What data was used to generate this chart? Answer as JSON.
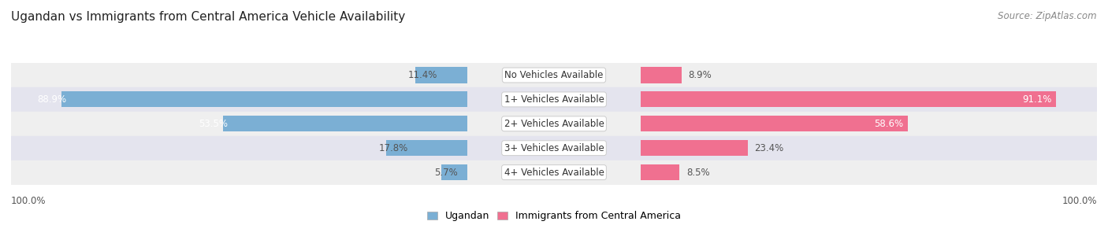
{
  "title": "Ugandan vs Immigrants from Central America Vehicle Availability",
  "source": "Source: ZipAtlas.com",
  "categories": [
    "No Vehicles Available",
    "1+ Vehicles Available",
    "2+ Vehicles Available",
    "3+ Vehicles Available",
    "4+ Vehicles Available"
  ],
  "ugandan": [
    11.4,
    88.9,
    53.5,
    17.8,
    5.7
  ],
  "immigrants": [
    8.9,
    91.1,
    58.6,
    23.4,
    8.5
  ],
  "ugandan_color": "#7bafd4",
  "immigrants_color": "#f07090",
  "ugandan_color_light": "#b8d4eb",
  "immigrants_color_light": "#f8b8c8",
  "ugandan_label": "Ugandan",
  "immigrants_label": "Immigrants from Central America",
  "row_bg_even": "#efefef",
  "row_bg_odd": "#e4e4ee",
  "max_val": 100.0,
  "title_fontsize": 11,
  "source_fontsize": 8.5,
  "label_fontsize": 8.5,
  "cat_fontsize": 8.5,
  "bar_height": 0.65,
  "figsize": [
    14.06,
    2.86
  ],
  "dpi": 100
}
